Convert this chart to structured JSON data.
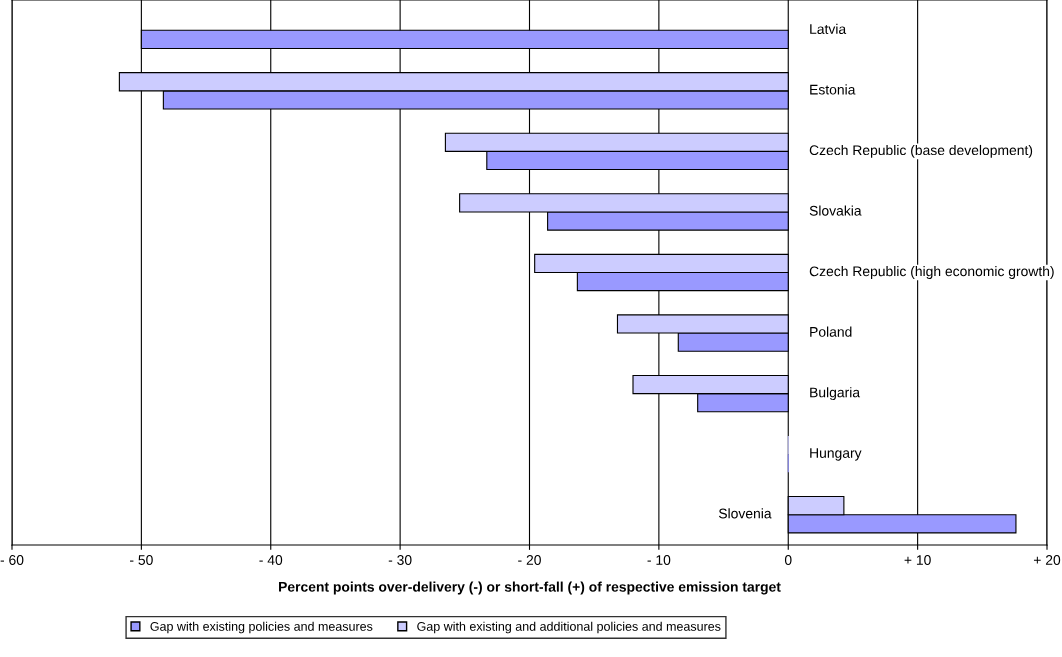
{
  "chart_data": {
    "type": "bar",
    "orientation": "horizontal",
    "xlabel": "Percent points over-delivery (-) or short-fall (+) of respective emission target",
    "categories": [
      "Latvia",
      "Estonia",
      "Czech Republic (base development)",
      "Slovakia",
      "Czech Republic (high economic growth)",
      "Poland",
      "Bulgaria",
      "Hungary",
      "Slovenia"
    ],
    "series": [
      {
        "name": "Gap with existing policies and measures",
        "color": "#9999ff",
        "values": [
          -50.0,
          -48.3,
          -23.3,
          -18.6,
          -16.3,
          -8.5,
          -7.0,
          0.0,
          17.6
        ]
      },
      {
        "name": "Gap with existing and additional policies and measures",
        "color": "#ccccff",
        "values": [
          null,
          -51.7,
          -26.5,
          -25.4,
          -19.6,
          -13.2,
          -12.0,
          0.0,
          4.3
        ]
      }
    ],
    "xlim": [
      -60,
      20
    ],
    "xticks": [
      {
        "value": -60,
        "label": "- 60"
      },
      {
        "value": -50,
        "label": "- 50"
      },
      {
        "value": -40,
        "label": "- 40"
      },
      {
        "value": -30,
        "label": "- 30"
      },
      {
        "value": -20,
        "label": "- 20"
      },
      {
        "value": -10,
        "label": "- 10"
      },
      0,
      {
        "value": 10,
        "label": "+ 10"
      },
      {
        "value": 20,
        "label": "+ 20"
      }
    ],
    "grid": "x",
    "legend": "bottom",
    "tick_labels": "x"
  }
}
